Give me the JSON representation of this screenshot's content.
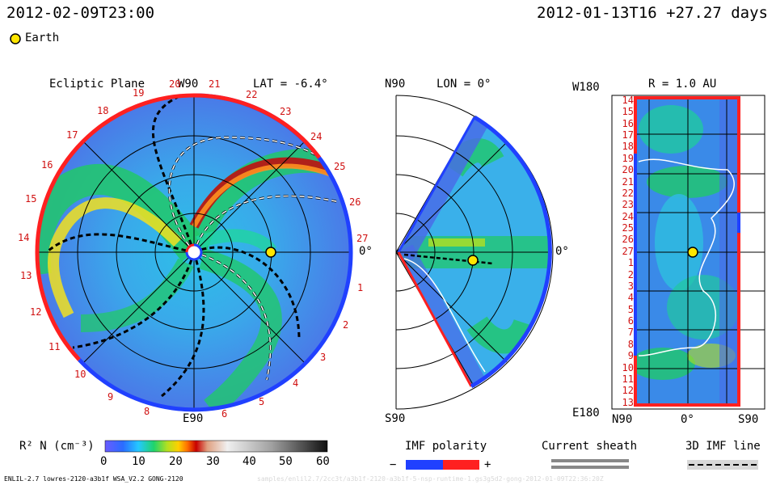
{
  "header": {
    "left_time": "2012-02-09T23:00",
    "right_time": "2012-01-13T16 +27.27 days",
    "legend_earth": "Earth"
  },
  "panels": {
    "ecliptic": {
      "title": "Ecliptic Plane",
      "lat": "LAT = -6.4°",
      "top_label": "W90",
      "bottom_label": "E90",
      "right_label": "0°",
      "left_numbers": [
        "19",
        "18",
        "17",
        "16",
        "15",
        "14",
        "13",
        "12",
        "11",
        "10",
        "9",
        "8"
      ],
      "top_numbers": [
        "20",
        "21",
        "22",
        "23",
        "24",
        "25",
        "26",
        "27"
      ],
      "right_numbers": [
        "1",
        "2",
        "3",
        "4",
        "5",
        "6"
      ]
    },
    "meridional": {
      "left_top": "N90",
      "title": "LON = 0°",
      "left_bottom": "S90",
      "right_label": "0°"
    },
    "radial": {
      "title": "R = 1.0 AU",
      "top_left": "W180",
      "bottom_left": "E180",
      "x_labels": [
        "N90",
        "0°",
        "S90"
      ],
      "y_labels": [
        "14",
        "15",
        "16",
        "17",
        "18",
        "19",
        "20",
        "21",
        "22",
        "23",
        "24",
        "25",
        "26",
        "27",
        "1",
        "2",
        "3",
        "4",
        "5",
        "6",
        "7",
        "8",
        "9",
        "10",
        "11",
        "12",
        "13"
      ]
    }
  },
  "colorbar": {
    "label": "R² N (cm⁻³)",
    "ticks": [
      "0",
      "10",
      "20",
      "30",
      "40",
      "50",
      "60"
    ]
  },
  "imf": {
    "label": "IMF polarity",
    "minus": "−",
    "plus": "+"
  },
  "sheath": {
    "label": "Current sheath"
  },
  "imf3d": {
    "label": "3D IMF line"
  },
  "footer": {
    "left": "ENLIL-2.7 lowres-2120-a3b1f WSA_V2.2 GONG-2120",
    "right": "samples/enlil2.7/2cc3t/a3b1f-2120-a3b1f-5-nsp-runtime-1.gs3g5d2-gong-2012-01-09T22:36:20Z"
  },
  "colors": {
    "accent_red": "#d01010",
    "ring_red": "#ff2020",
    "ring_blue": "#2040ff",
    "earth_yellow": "#ffe600"
  }
}
